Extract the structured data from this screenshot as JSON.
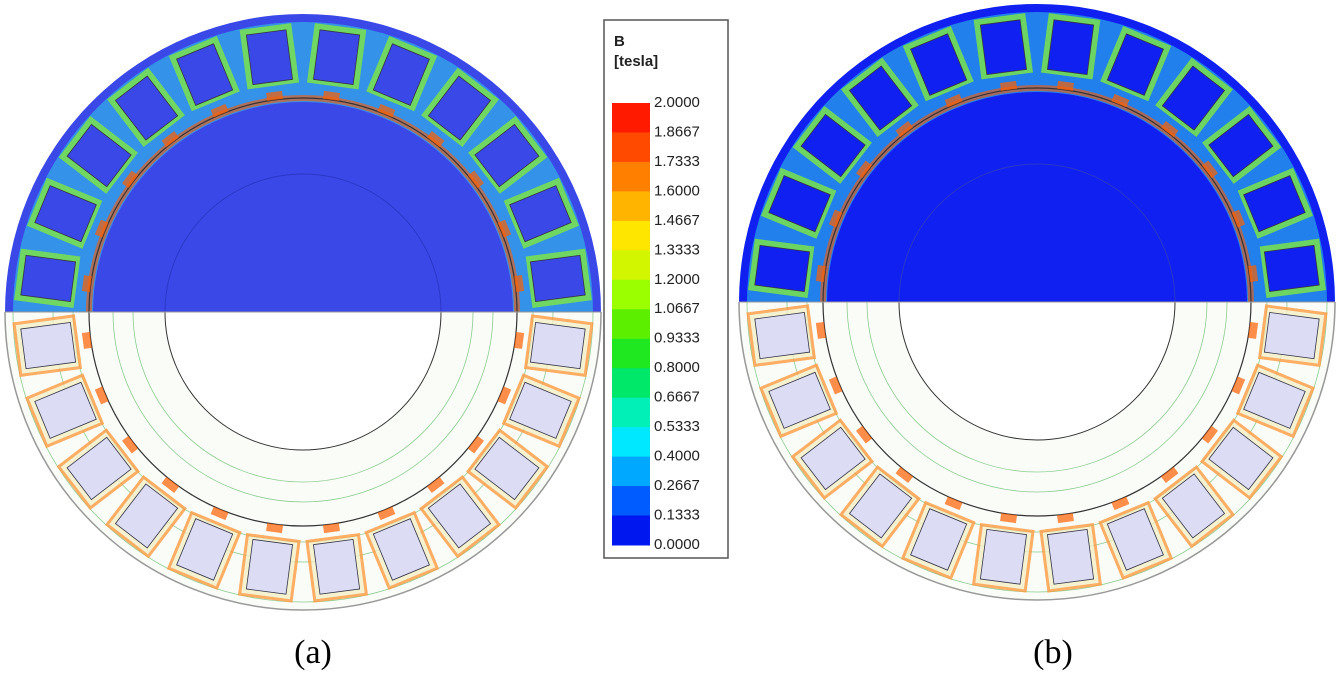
{
  "legend": {
    "title": "B",
    "unit": "[tesla]",
    "labels": [
      "2.0000",
      "1.8667",
      "1.7333",
      "1.6000",
      "1.4667",
      "1.3333",
      "1.2000",
      "1.0667",
      "0.9333",
      "0.8000",
      "0.6667",
      "0.5333",
      "0.4000",
      "0.2667",
      "0.1333",
      "0.0000"
    ],
    "colors": [
      "#ff1a00",
      "#ff4a00",
      "#ff8000",
      "#ffb400",
      "#ffe600",
      "#d2f500",
      "#9cff00",
      "#5cf000",
      "#20e820",
      "#00e86a",
      "#00f0b8",
      "#00e8ff",
      "#00a8ff",
      "#005cff",
      "#0018f0"
    ]
  },
  "panels": [
    {
      "caption": "(a)"
    },
    {
      "caption": "(b)"
    }
  ]
}
